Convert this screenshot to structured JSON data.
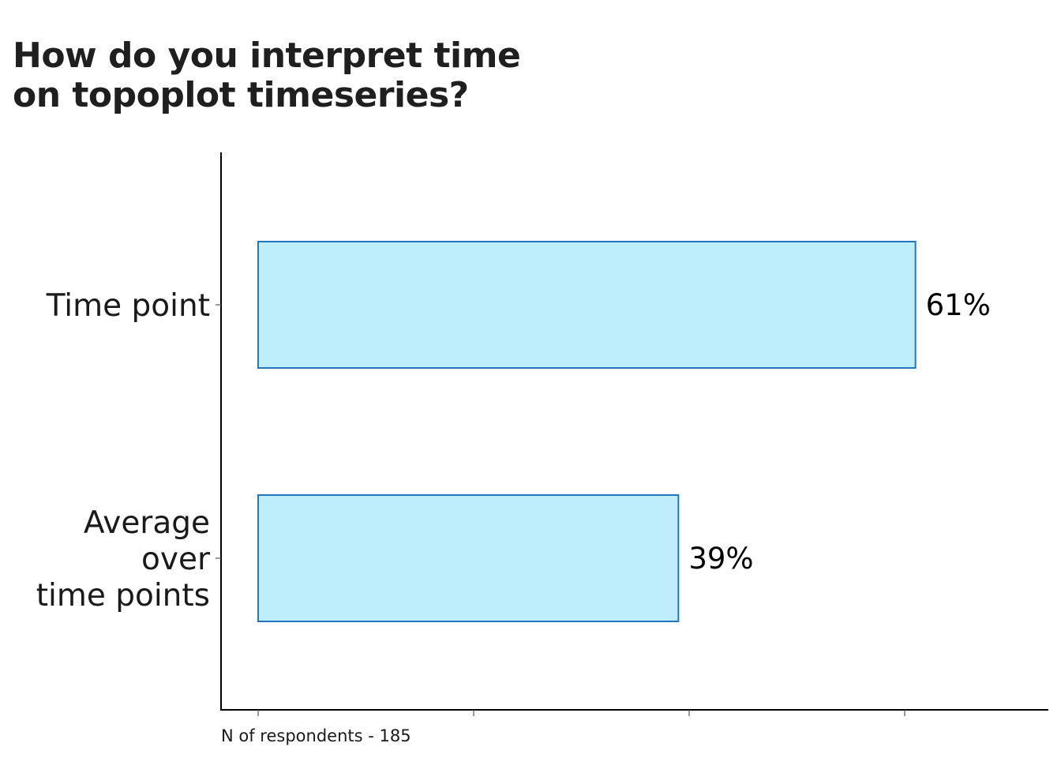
{
  "title_lines": [
    "How do you interpret time",
    "on topoplot timeseries?"
  ],
  "chart_data": {
    "type": "bar",
    "orientation": "horizontal",
    "categories": [
      [
        "Time point"
      ],
      [
        "Average",
        "over",
        "time points"
      ]
    ],
    "values": [
      61,
      39
    ],
    "value_labels": [
      "61%",
      "39%"
    ],
    "xlim": [
      0,
      80
    ],
    "xticks": [
      0,
      20,
      40,
      60
    ],
    "x_tick_labels_shown": false,
    "grid": false,
    "legend": "none",
    "bar_fill": "#BEEDFC",
    "bar_stroke": "#2277BB",
    "note": "N of respondents - 185"
  }
}
